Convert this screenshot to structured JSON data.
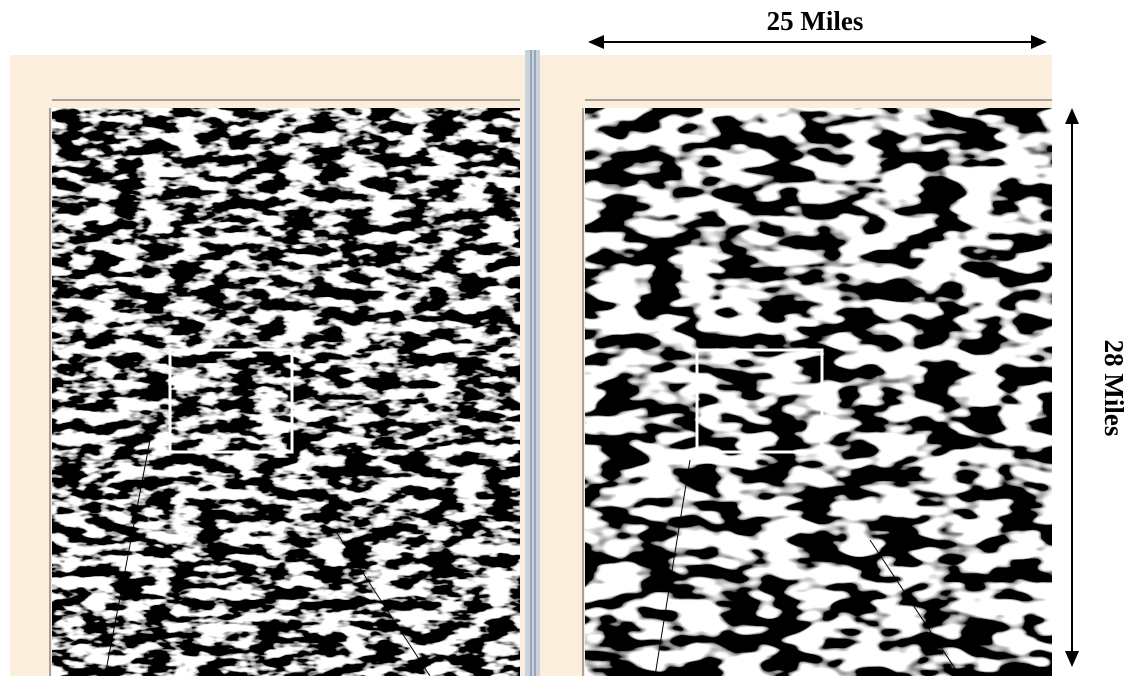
{
  "scale": {
    "width_label": "25 Miles",
    "height_label": "28 Miles"
  }
}
